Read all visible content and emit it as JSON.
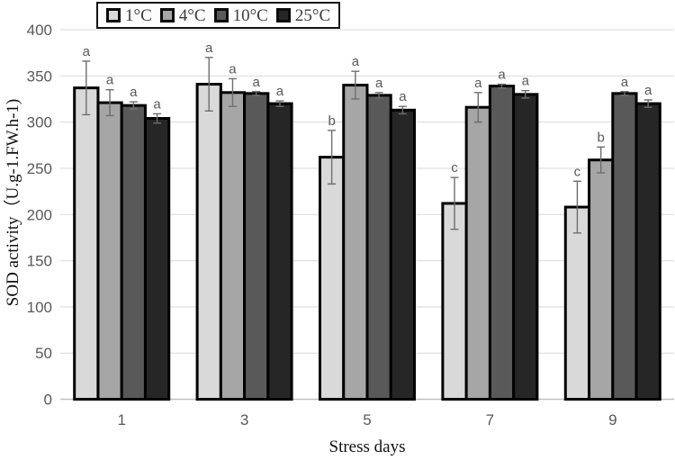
{
  "figure": {
    "kind": "grouped-bar-chart-with-error-bars",
    "background": "#ffffff"
  },
  "chart_data": {
    "type": "bar",
    "title": "",
    "xlabel": "Stress days",
    "ylabel": "SOD activity（U.g-1.FW.h-1)",
    "categories": [
      "1",
      "3",
      "5",
      "7",
      "9"
    ],
    "ylim": [
      0,
      400
    ],
    "ytick_step": 50,
    "ytick_labels": [
      "0",
      "50",
      "100",
      "150",
      "200",
      "250",
      "300",
      "350",
      "400"
    ],
    "grid": true,
    "legend_position": "top",
    "bar_outline_color": "#000000",
    "error_bar_color": "#6e6e6e",
    "sig_letter_color": "#595959",
    "gridline_color": "#d9d9d9",
    "series": [
      {
        "name": "1°C",
        "color": "#d9d9d9",
        "values": [
          337,
          341,
          262,
          212,
          208
        ],
        "errors": [
          29,
          29,
          29,
          28,
          28
        ],
        "sig_letters": [
          "a",
          "a",
          "b",
          "c",
          "c"
        ]
      },
      {
        "name": "4°C",
        "color": "#a6a6a6",
        "values": [
          321,
          332,
          340,
          316,
          259
        ],
        "errors": [
          14,
          15,
          15,
          16,
          14
        ],
        "sig_letters": [
          "a",
          "a",
          "a",
          "a",
          "b"
        ]
      },
      {
        "name": "10°C",
        "color": "#595959",
        "values": [
          318,
          331,
          329,
          339,
          331
        ],
        "errors": [
          4,
          2,
          3,
          2,
          2
        ],
        "sig_letters": [
          "a",
          "a",
          "a",
          "a",
          "a"
        ]
      },
      {
        "name": "25°C",
        "color": "#262626",
        "values": [
          304,
          320,
          313,
          330,
          320
        ],
        "errors": [
          5,
          3,
          4,
          4,
          4
        ],
        "sig_letters": [
          "a",
          "a",
          "a",
          "a",
          "a"
        ]
      }
    ]
  }
}
